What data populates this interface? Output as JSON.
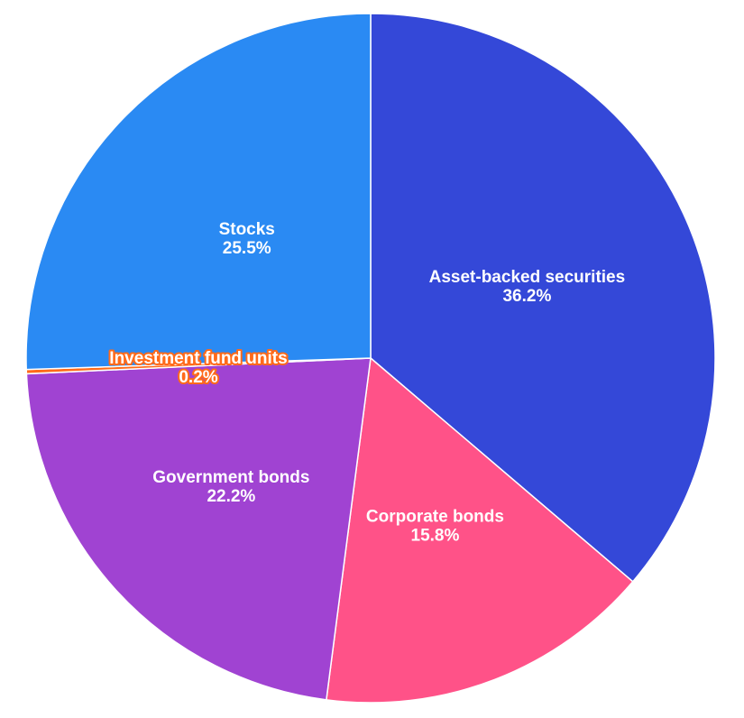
{
  "chart_data": {
    "type": "pie",
    "title": "",
    "slices": [
      {
        "label": "Asset-backed securities",
        "value": 36.2,
        "display": "36.2%",
        "color": "#3448d8"
      },
      {
        "label": "Corporate bonds",
        "value": 15.8,
        "display": "15.8%",
        "color": "#ff5288"
      },
      {
        "label": "Government bonds",
        "value": 22.2,
        "display": "22.2%",
        "color": "#a043d2"
      },
      {
        "label": "Investment fund units",
        "value": 0.2,
        "display": "0.2%",
        "color": "#ff6a1a"
      },
      {
        "label": "Stocks",
        "value": 25.5,
        "display": "25.5%",
        "color": "#2a8af3"
      }
    ],
    "start_angle": "12 o'clock",
    "direction": "clockwise",
    "legend": "none"
  }
}
